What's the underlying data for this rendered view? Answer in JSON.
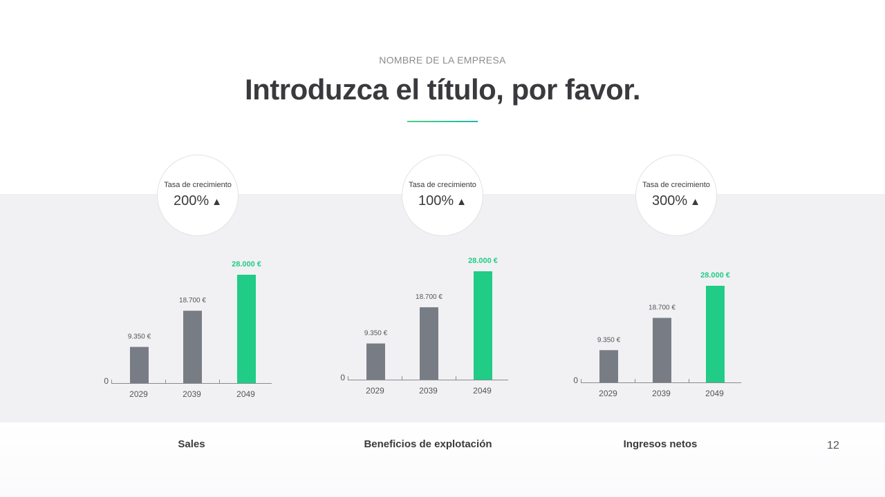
{
  "slide": {
    "company": "NOMBRE DE LA EMPRESA",
    "title": "Introduzca el título, por favor.",
    "page_number": "12"
  },
  "panels": [
    {
      "caption": "Sales",
      "growth_label": "Tasa de crecimiento",
      "growth_value": "200%",
      "growth_icon": "arrow-up-icon"
    },
    {
      "caption": "Beneficios de explotación",
      "growth_label": "Tasa de crecimiento",
      "growth_value": "100%",
      "growth_icon": "arrow-up-icon"
    },
    {
      "caption": "Ingresos netos",
      "growth_label": "Tasa de crecimiento",
      "growth_value": "300%",
      "growth_icon": "arrow-up-icon"
    }
  ],
  "chart_data": [
    {
      "type": "bar",
      "title": "Sales",
      "categories": [
        "2029",
        "2039",
        "2049"
      ],
      "values": [
        9350,
        18700,
        28000
      ],
      "value_labels": [
        "9.350 €",
        "18.700 €",
        "28.000 €"
      ],
      "y_zero_label": "0",
      "ylim": [
        0,
        28000
      ],
      "colors": [
        "#787d85",
        "#787d85",
        "#21cc86"
      ],
      "grid": false
    },
    {
      "type": "bar",
      "title": "Beneficios de explotación",
      "categories": [
        "2029",
        "2039",
        "2049"
      ],
      "values": [
        9350,
        18700,
        28000
      ],
      "value_labels": [
        "9.350 €",
        "18.700 €",
        "28.000 €"
      ],
      "y_zero_label": "0",
      "ylim": [
        0,
        28000
      ],
      "colors": [
        "#787d85",
        "#787d85",
        "#21cc86"
      ],
      "grid": false
    },
    {
      "type": "bar",
      "title": "Ingresos netos",
      "categories": [
        "2029",
        "2039",
        "2049"
      ],
      "values": [
        9350,
        18700,
        28000
      ],
      "value_labels": [
        "9.350 €",
        "18.700 €",
        "28.000 €"
      ],
      "y_zero_label": "0",
      "ylim": [
        0,
        28000
      ],
      "colors": [
        "#787d85",
        "#787d85",
        "#21cc86"
      ],
      "grid": false
    }
  ],
  "colors": {
    "accent_green": "#21cc86",
    "bar_gray": "#787d85",
    "band_background": "#f1f1f3",
    "text_dark": "#3a3a3e"
  }
}
